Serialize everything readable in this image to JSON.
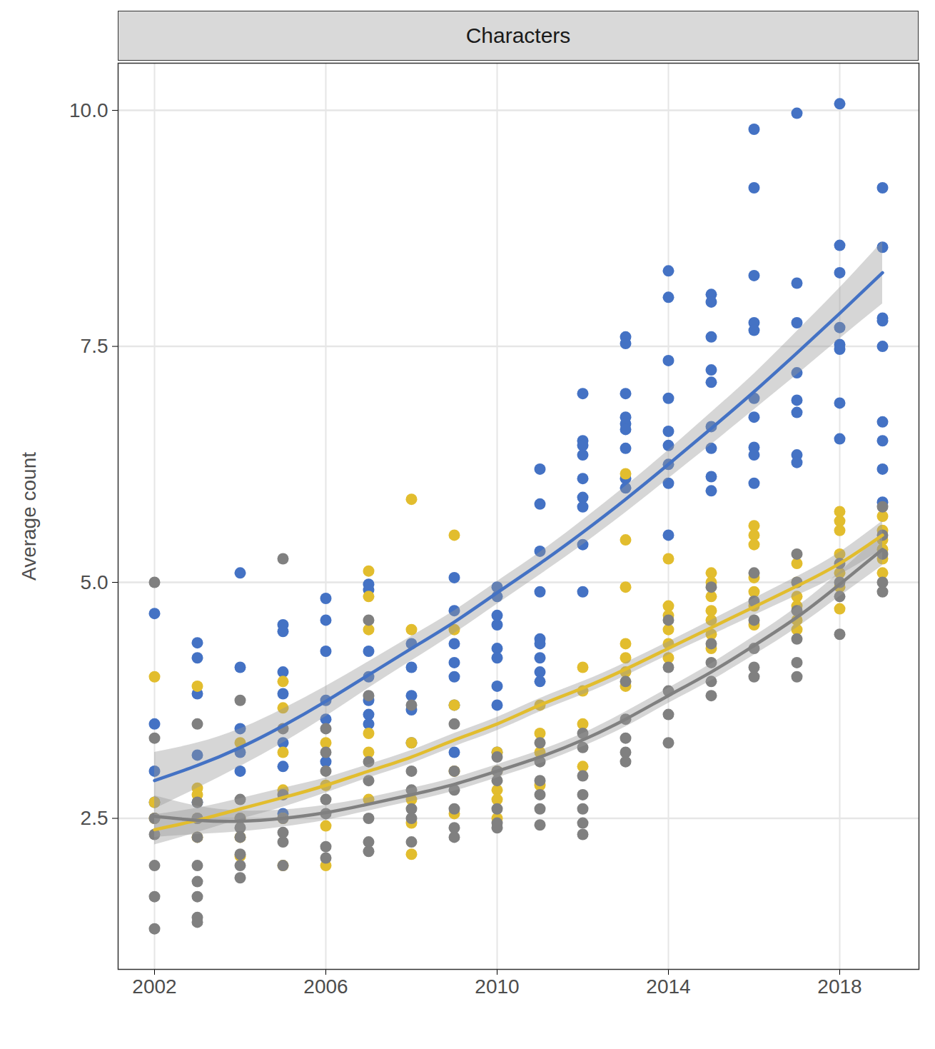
{
  "chart_data": {
    "type": "scatter",
    "title": "Characters",
    "y_label": "Average count",
    "xlim": [
      2001.15,
      2019.85
    ],
    "xticks": [
      2002,
      2006,
      2010,
      2014,
      2018
    ],
    "ylim": [
      0.9,
      10.5
    ],
    "yticks": [
      2.5,
      {
        "value": 5,
        "label": "5.0"
      },
      7.5,
      {
        "value": 10,
        "label": "10.0"
      }
    ],
    "grid": true,
    "series": [
      {
        "type": "scatter",
        "color": "#4472C4",
        "x": [
          2002,
          2002,
          2002,
          2002,
          2003,
          2003,
          2003,
          2003,
          2003,
          2004,
          2004,
          2004,
          2004,
          2004,
          2005,
          2005,
          2005,
          2005,
          2005,
          2005,
          2005,
          2006,
          2006,
          2006,
          2006,
          2006,
          2006,
          2007,
          2007,
          2007,
          2007,
          2007,
          2007,
          2007,
          2008,
          2008,
          2008,
          2008,
          2008,
          2009,
          2009,
          2009,
          2009,
          2009,
          2009,
          2009,
          2010,
          2010,
          2010,
          2010,
          2010,
          2010,
          2010,
          2010,
          2010,
          2011,
          2011,
          2011,
          2011,
          2011,
          2011,
          2011,
          2011,
          2011,
          2012,
          2012,
          2012,
          2012,
          2012,
          2012,
          2012,
          2012,
          2012,
          2013,
          2013,
          2013,
          2013,
          2013,
          2013,
          2013,
          2013,
          2013,
          2014,
          2014,
          2014,
          2014,
          2014,
          2014,
          2014,
          2014,
          2014,
          2015,
          2015,
          2015,
          2015,
          2015,
          2015,
          2015,
          2015,
          2015,
          2016,
          2016,
          2016,
          2016,
          2016,
          2016,
          2016,
          2016,
          2016,
          2016,
          2017,
          2017,
          2017,
          2017,
          2017,
          2017,
          2017,
          2017,
          2018,
          2018,
          2018,
          2018,
          2018,
          2018,
          2018,
          2018,
          2019,
          2019,
          2019,
          2019,
          2019,
          2019,
          2019,
          2019,
          2019
        ],
        "values": [
          4.67,
          3.5,
          3.0,
          2.67,
          4.36,
          4.2,
          3.82,
          3.17,
          2.67,
          5.1,
          4.1,
          3.45,
          3.2,
          3.0,
          4.55,
          4.48,
          4.05,
          3.82,
          3.3,
          3.05,
          2.55,
          4.83,
          4.6,
          4.27,
          3.75,
          3.55,
          3.1,
          4.98,
          4.92,
          4.27,
          4.0,
          3.75,
          3.6,
          3.5,
          4.35,
          4.1,
          3.8,
          3.65,
          3.3,
          5.05,
          4.7,
          4.35,
          4.15,
          4.0,
          3.7,
          3.2,
          4.95,
          4.85,
          4.65,
          4.55,
          4.3,
          4.2,
          3.9,
          3.7,
          3.2,
          6.2,
          5.83,
          5.33,
          4.9,
          4.4,
          4.35,
          4.2,
          4.05,
          3.95,
          7.0,
          6.5,
          6.45,
          6.35,
          6.1,
          5.9,
          5.8,
          5.4,
          4.9,
          7.6,
          7.53,
          7.0,
          6.75,
          6.68,
          6.62,
          6.42,
          6.1,
          6.0,
          8.3,
          8.02,
          7.35,
          6.95,
          6.6,
          6.45,
          6.25,
          6.05,
          5.5,
          8.05,
          7.97,
          7.6,
          7.25,
          7.12,
          6.65,
          6.42,
          6.12,
          5.97,
          9.8,
          9.18,
          8.25,
          7.75,
          7.67,
          6.95,
          6.75,
          6.43,
          6.35,
          6.05,
          9.97,
          8.17,
          7.75,
          7.22,
          6.93,
          6.8,
          6.35,
          6.27,
          10.07,
          8.57,
          8.28,
          7.7,
          7.52,
          7.47,
          6.9,
          6.52,
          9.18,
          8.55,
          7.8,
          7.77,
          7.5,
          6.7,
          6.5,
          6.2,
          5.85
        ]
      },
      {
        "type": "scatter",
        "color": "#E2BD2E",
        "x": [
          2002,
          2002,
          2002,
          2003,
          2003,
          2003,
          2003,
          2003,
          2004,
          2004,
          2004,
          2004,
          2005,
          2005,
          2005,
          2005,
          2005,
          2005,
          2006,
          2006,
          2006,
          2006,
          2007,
          2007,
          2007,
          2007,
          2007,
          2007,
          2008,
          2008,
          2008,
          2008,
          2008,
          2008,
          2009,
          2009,
          2009,
          2009,
          2009,
          2010,
          2010,
          2010,
          2010,
          2010,
          2011,
          2011,
          2011,
          2011,
          2012,
          2012,
          2012,
          2012,
          2013,
          2013,
          2013,
          2013,
          2013,
          2013,
          2013,
          2014,
          2014,
          2014,
          2014,
          2014,
          2014,
          2015,
          2015,
          2015,
          2015,
          2015,
          2015,
          2015,
          2016,
          2016,
          2016,
          2016,
          2016,
          2016,
          2016,
          2017,
          2017,
          2017,
          2017,
          2017,
          2017,
          2018,
          2018,
          2018,
          2018,
          2018,
          2018,
          2018,
          2019,
          2019,
          2019,
          2019,
          2019,
          2019
        ],
        "values": [
          4.0,
          2.67,
          2.5,
          3.9,
          2.82,
          2.75,
          2.5,
          2.3,
          3.3,
          2.5,
          2.3,
          2.1,
          3.95,
          3.67,
          3.2,
          2.8,
          2.5,
          2.0,
          3.3,
          2.85,
          2.42,
          2.0,
          5.12,
          4.85,
          4.5,
          3.4,
          3.2,
          2.7,
          5.88,
          4.5,
          3.3,
          2.7,
          2.45,
          2.12,
          5.5,
          4.5,
          3.7,
          3.0,
          2.55,
          3.2,
          3.0,
          2.8,
          2.7,
          2.5,
          3.7,
          3.4,
          3.2,
          2.85,
          4.1,
          3.85,
          3.5,
          3.05,
          6.15,
          5.45,
          4.95,
          4.35,
          4.2,
          4.05,
          3.9,
          5.25,
          4.75,
          4.65,
          4.5,
          4.35,
          4.2,
          5.1,
          5.0,
          4.85,
          4.7,
          4.6,
          4.45,
          4.3,
          5.6,
          5.5,
          5.4,
          5.05,
          4.9,
          4.75,
          4.55,
          5.2,
          5.0,
          4.85,
          4.75,
          4.6,
          4.5,
          5.75,
          5.65,
          5.55,
          5.3,
          5.1,
          4.95,
          4.72,
          5.7,
          5.55,
          5.45,
          5.35,
          5.25,
          5.1
        ]
      },
      {
        "type": "scatter",
        "color": "#808080",
        "x": [
          2002,
          2002,
          2002,
          2002,
          2002,
          2002,
          2002,
          2003,
          2003,
          2003,
          2003,
          2003,
          2003,
          2003,
          2003,
          2003,
          2004,
          2004,
          2004,
          2004,
          2004,
          2004,
          2004,
          2004,
          2005,
          2005,
          2005,
          2005,
          2005,
          2005,
          2005,
          2006,
          2006,
          2006,
          2006,
          2006,
          2006,
          2006,
          2007,
          2007,
          2007,
          2007,
          2007,
          2007,
          2007,
          2008,
          2008,
          2008,
          2008,
          2008,
          2008,
          2009,
          2009,
          2009,
          2009,
          2009,
          2009,
          2010,
          2010,
          2010,
          2010,
          2010,
          2010,
          2011,
          2011,
          2011,
          2011,
          2011,
          2011,
          2012,
          2012,
          2012,
          2012,
          2012,
          2012,
          2012,
          2013,
          2013,
          2013,
          2013,
          2013,
          2014,
          2014,
          2014,
          2014,
          2014,
          2015,
          2015,
          2015,
          2015,
          2015,
          2016,
          2016,
          2016,
          2016,
          2016,
          2016,
          2017,
          2017,
          2017,
          2017,
          2017,
          2017,
          2018,
          2018,
          2018,
          2018,
          2019,
          2019,
          2019,
          2019,
          2019
        ],
        "values": [
          5.0,
          3.35,
          2.5,
          2.33,
          2.0,
          1.67,
          1.33,
          3.5,
          2.67,
          2.5,
          2.3,
          2.0,
          1.83,
          1.67,
          1.45,
          1.4,
          3.75,
          2.7,
          2.5,
          2.4,
          2.3,
          2.12,
          2.0,
          1.87,
          5.25,
          3.45,
          2.75,
          2.5,
          2.35,
          2.25,
          2.0,
          3.45,
          3.2,
          3.0,
          2.7,
          2.55,
          2.2,
          2.08,
          4.6,
          3.8,
          3.1,
          2.9,
          2.5,
          2.25,
          2.15,
          3.7,
          3.0,
          2.8,
          2.6,
          2.5,
          2.25,
          3.5,
          3.0,
          2.8,
          2.6,
          2.4,
          2.3,
          3.15,
          3.0,
          2.9,
          2.6,
          2.45,
          2.4,
          3.3,
          3.1,
          2.9,
          2.75,
          2.6,
          2.43,
          3.4,
          3.25,
          2.95,
          2.75,
          2.6,
          2.45,
          2.33,
          3.95,
          3.55,
          3.35,
          3.2,
          3.1,
          4.6,
          4.1,
          3.85,
          3.6,
          3.3,
          4.95,
          4.35,
          4.15,
          3.95,
          3.8,
          5.1,
          4.8,
          4.6,
          4.3,
          4.1,
          4.0,
          5.3,
          5.0,
          4.7,
          4.4,
          4.15,
          4.0,
          5.2,
          5.0,
          4.85,
          4.45,
          5.8,
          5.5,
          5.3,
          5.0,
          4.9
        ]
      },
      {
        "type": "line",
        "color": "#4472C4",
        "x": [
          2002,
          2003,
          2004,
          2005,
          2006,
          2007,
          2008,
          2009,
          2010,
          2011,
          2012,
          2013,
          2014,
          2015,
          2016,
          2017,
          2018,
          2019
        ],
        "values": [
          2.9,
          3.06,
          3.25,
          3.48,
          3.74,
          4.02,
          4.3,
          4.58,
          4.89,
          5.2,
          5.53,
          5.88,
          6.25,
          6.63,
          7.02,
          7.43,
          7.85,
          8.28
        ],
        "lower": [
          2.6,
          2.82,
          3.05,
          3.3,
          3.58,
          3.88,
          4.17,
          4.46,
          4.77,
          5.08,
          5.4,
          5.74,
          6.1,
          6.46,
          6.83,
          7.2,
          7.58,
          7.95
        ],
        "upper": [
          3.2,
          3.3,
          3.45,
          3.66,
          3.9,
          4.16,
          4.43,
          4.7,
          5.01,
          5.32,
          5.66,
          6.02,
          6.4,
          6.8,
          7.21,
          7.66,
          8.12,
          8.61
        ]
      },
      {
        "type": "line",
        "color": "#E2BD2E",
        "x": [
          2002,
          2003,
          2004,
          2005,
          2006,
          2007,
          2008,
          2009,
          2010,
          2011,
          2012,
          2013,
          2014,
          2015,
          2016,
          2017,
          2018,
          2019
        ],
        "values": [
          2.38,
          2.48,
          2.6,
          2.72,
          2.85,
          3.0,
          3.15,
          3.33,
          3.5,
          3.7,
          3.88,
          4.08,
          4.3,
          4.52,
          4.74,
          4.96,
          5.2,
          5.5
        ],
        "lower": [
          2.22,
          2.35,
          2.49,
          2.62,
          2.77,
          2.93,
          3.08,
          3.26,
          3.43,
          3.63,
          3.81,
          4.01,
          4.23,
          4.44,
          4.65,
          4.86,
          5.08,
          5.35
        ],
        "upper": [
          2.54,
          2.61,
          2.71,
          2.82,
          2.93,
          3.07,
          3.22,
          3.4,
          3.57,
          3.77,
          3.95,
          4.15,
          4.37,
          4.6,
          4.83,
          5.06,
          5.32,
          5.65
        ]
      },
      {
        "type": "line",
        "color": "#808080",
        "x": [
          2002,
          2003,
          2004,
          2005,
          2006,
          2007,
          2008,
          2009,
          2010,
          2011,
          2012,
          2013,
          2014,
          2015,
          2016,
          2017,
          2018,
          2019
        ],
        "values": [
          2.52,
          2.48,
          2.47,
          2.5,
          2.56,
          2.65,
          2.75,
          2.86,
          3.0,
          3.15,
          3.33,
          3.55,
          3.8,
          4.05,
          4.33,
          4.63,
          4.98,
          5.35
        ],
        "lower": [
          2.3,
          2.33,
          2.36,
          2.41,
          2.48,
          2.58,
          2.68,
          2.79,
          2.93,
          3.08,
          3.26,
          3.47,
          3.72,
          3.96,
          4.23,
          4.52,
          4.85,
          5.18
        ],
        "upper": [
          2.74,
          2.63,
          2.58,
          2.59,
          2.64,
          2.72,
          2.82,
          2.93,
          3.07,
          3.22,
          3.4,
          3.63,
          3.88,
          4.14,
          4.43,
          4.74,
          5.11,
          5.52
        ]
      }
    ]
  }
}
